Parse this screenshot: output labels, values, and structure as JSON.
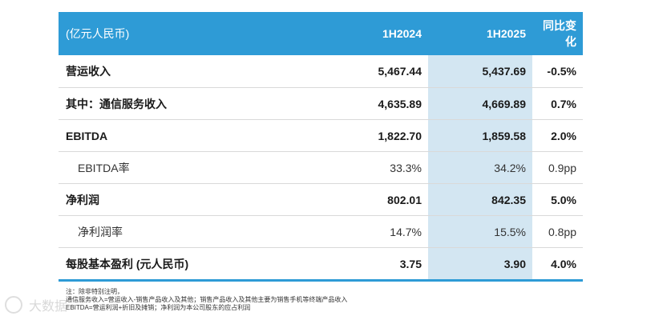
{
  "table": {
    "header": {
      "label": "(亿元人民币)",
      "col1": "1H2024",
      "col2": "1H2025",
      "col3": "同比变化"
    },
    "rows": [
      {
        "label": "营运收入",
        "v1": "5,467.44",
        "v2": "5,437.69",
        "v3": "-0.5%"
      },
      {
        "label": "其中：通信服务收入",
        "v1": "4,635.89",
        "v2": "4,669.89",
        "v3": "0.7%"
      },
      {
        "label": "EBITDA",
        "v1": "1,822.70",
        "v2": "1,859.58",
        "v3": "2.0%"
      },
      {
        "label": "EBITDA率",
        "v1": "33.3%",
        "v2": "34.2%",
        "v3": "0.9pp"
      },
      {
        "label": "净利润",
        "v1": "802.01",
        "v2": "842.35",
        "v3": "5.0%"
      },
      {
        "label": "净利润率",
        "v1": "14.7%",
        "v2": "15.5%",
        "v3": "0.8pp"
      },
      {
        "label": "每股基本盈利 (元人民币)",
        "v1": "3.75",
        "v2": "3.90",
        "v3": "4.0%"
      }
    ]
  },
  "notes": {
    "line1": "注：除非特别注明，",
    "line2": "通信服务收入=营运收入-销售产品收入及其他；销售产品收入及其他主要为销售手机等终端产品收入",
    "line3": "EBITDA=营运利润+折旧及摊销；净利润为本公司股东的应占利润"
  },
  "watermark": {
    "text": "大数据"
  },
  "colors": {
    "header_bg": "#2e9bd6",
    "highlight_col": "#d3e6f2",
    "rule": "#d9d9d9"
  }
}
